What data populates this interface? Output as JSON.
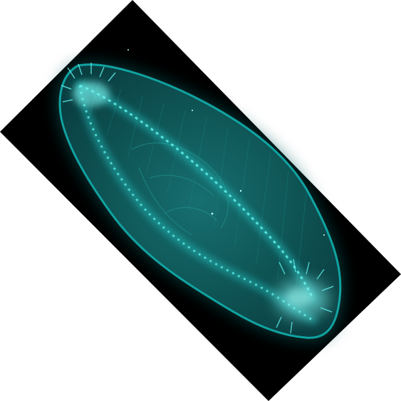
{
  "image": {
    "subject": "fluorescence-microscopy-cell",
    "colors": {
      "background": "#ffffff",
      "frame": "#000000",
      "body_edge": "#0aa7a5",
      "body_fill": "#0d4f51",
      "body_glow": "#1a8f8e",
      "fibers": "#2bd6d2",
      "highlight": "#7df5f0"
    }
  }
}
